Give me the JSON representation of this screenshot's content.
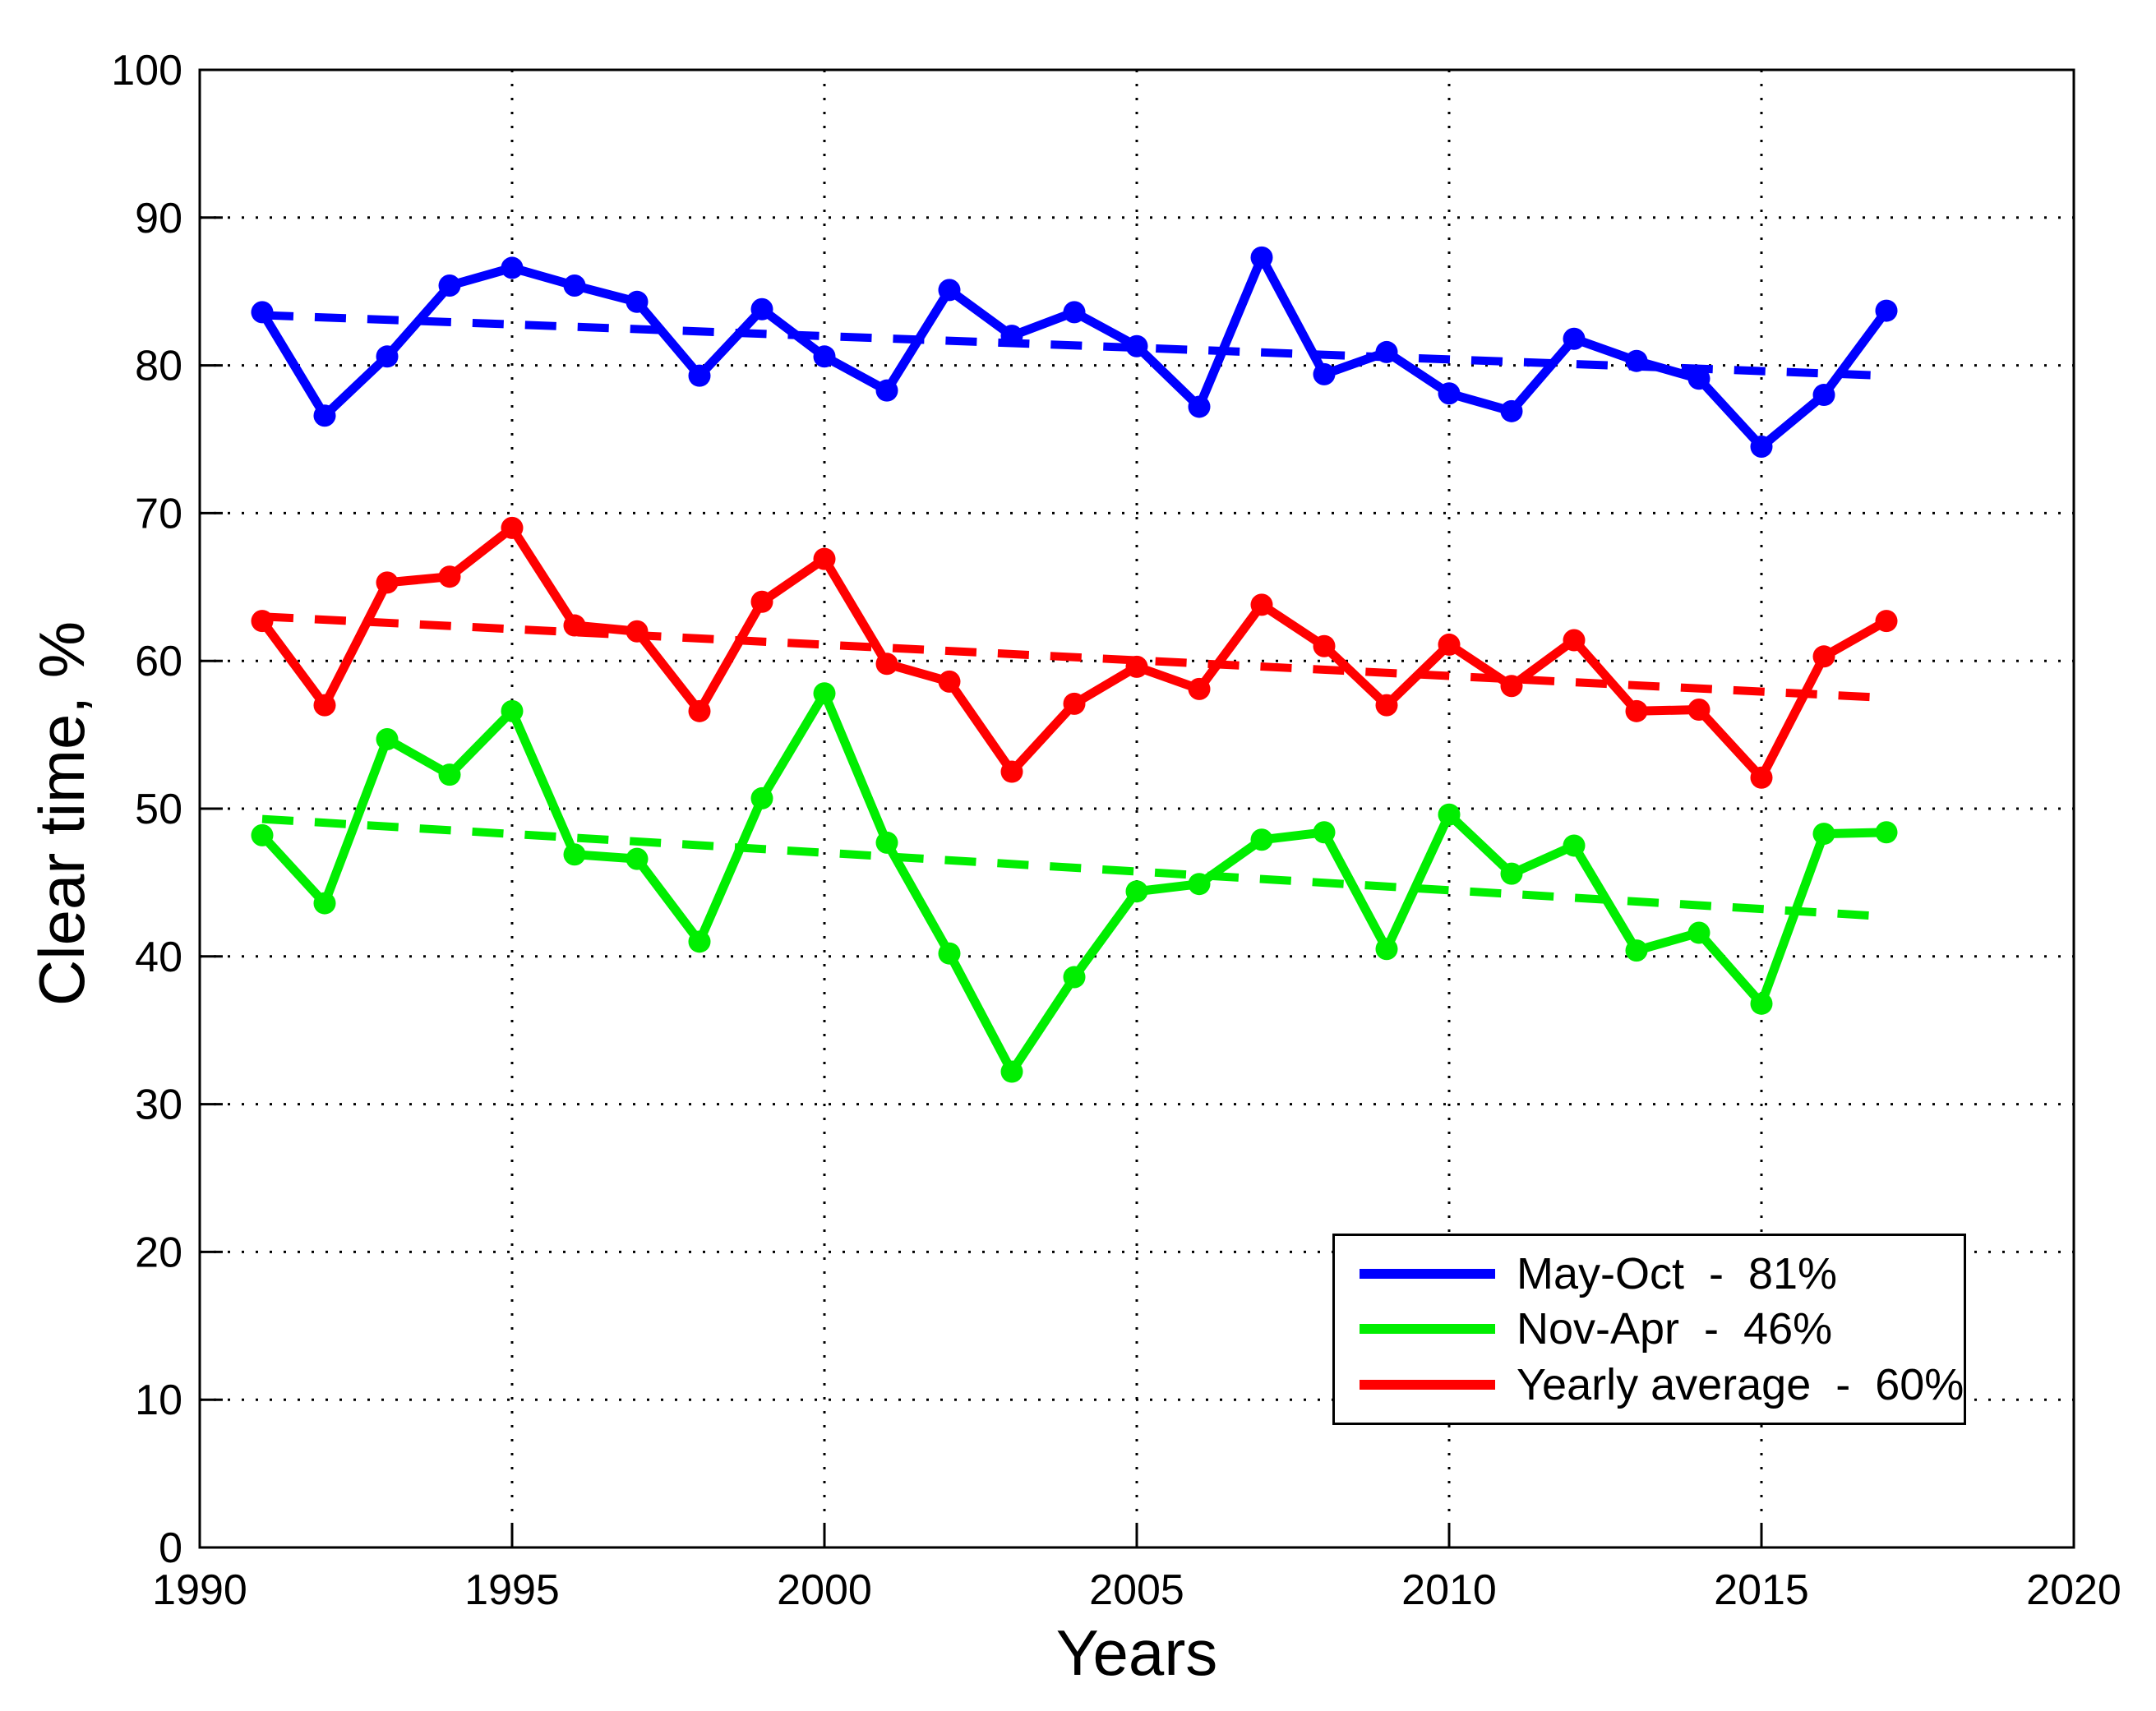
{
  "chart_data": {
    "type": "line",
    "title": "",
    "xlabel": "Years",
    "ylabel": "Clear time, %",
    "xlim": [
      1990,
      2020
    ],
    "ylim": [
      0,
      100
    ],
    "x_ticks": [
      1990,
      1995,
      2000,
      2005,
      2010,
      2015,
      2020
    ],
    "y_ticks": [
      0,
      10,
      20,
      30,
      40,
      50,
      60,
      70,
      80,
      90,
      100
    ],
    "grid": "dotted",
    "legend_position": "lower-right",
    "x": [
      1991,
      1992,
      1993,
      1994,
      1995,
      1996,
      1997,
      1998,
      1999,
      2000,
      2001,
      2002,
      2003,
      2004,
      2005,
      2006,
      2007,
      2008,
      2009,
      2010,
      2011,
      2012,
      2013,
      2014,
      2015,
      2016,
      2017
    ],
    "series": [
      {
        "name": "May-Oct",
        "legend_label": "May-Oct  -  81%",
        "color": "#0000ff",
        "values": [
          83.6,
          76.6,
          80.6,
          85.4,
          86.6,
          85.4,
          84.3,
          79.3,
          83.8,
          80.6,
          78.3,
          85.1,
          82.0,
          83.6,
          81.3,
          77.2,
          87.3,
          79.4,
          80.9,
          78.1,
          76.9,
          81.8,
          80.3,
          79.1,
          74.5,
          78.0,
          83.7
        ],
        "trend": {
          "x": [
            1991,
            2017
          ],
          "y": [
            83.4,
            79.3
          ],
          "style": "dashed"
        }
      },
      {
        "name": "Nov-Apr",
        "legend_label": "Nov-Apr  -  46%",
        "color": "#00ee00",
        "values": [
          48.2,
          43.6,
          54.7,
          52.3,
          56.6,
          46.9,
          46.6,
          41.0,
          50.7,
          57.8,
          47.7,
          40.2,
          32.2,
          38.6,
          44.4,
          44.9,
          47.9,
          48.4,
          40.5,
          49.6,
          45.6,
          47.5,
          40.4,
          41.6,
          36.8,
          48.3,
          48.4
        ],
        "trend": {
          "x": [
            1991,
            2017
          ],
          "y": [
            49.3,
            42.7
          ],
          "style": "dashed"
        }
      },
      {
        "name": "Yearly average",
        "legend_label": "Yearly average  -  60%",
        "color": "#ff0000",
        "values": [
          62.7,
          57.0,
          65.3,
          65.7,
          69.0,
          62.4,
          62.0,
          56.6,
          64.0,
          66.9,
          59.8,
          58.6,
          52.5,
          57.1,
          59.6,
          58.1,
          63.8,
          61.0,
          57.0,
          61.1,
          58.3,
          61.4,
          56.6,
          56.7,
          52.1,
          60.3,
          62.7
        ],
        "trend": {
          "x": [
            1991,
            2017
          ],
          "y": [
            63.0,
            57.5
          ],
          "style": "dashed"
        }
      }
    ]
  }
}
